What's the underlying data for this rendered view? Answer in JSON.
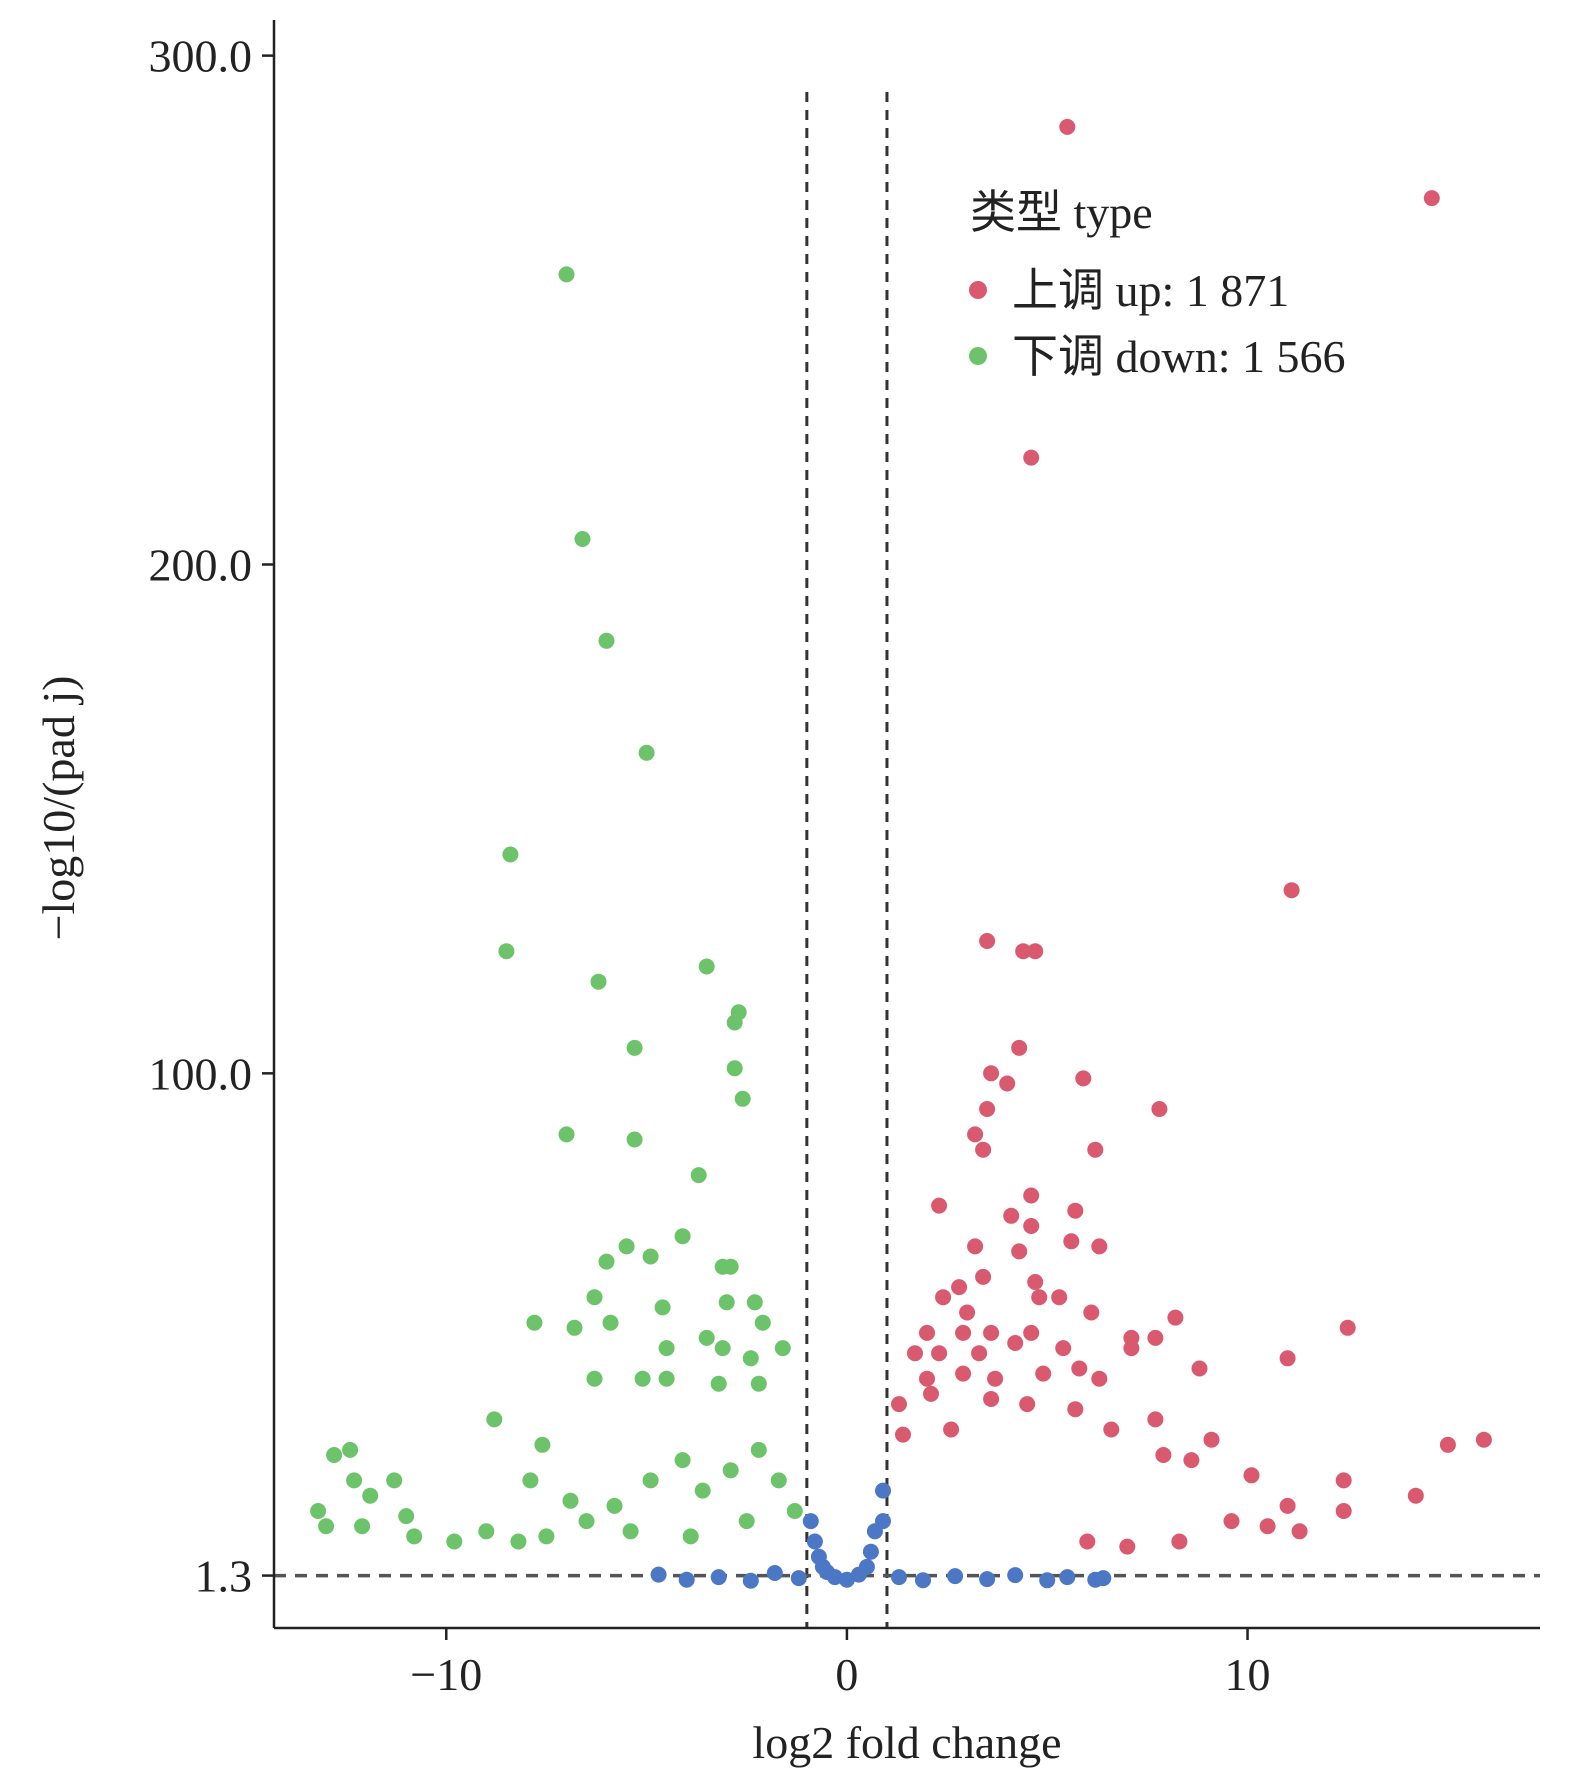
{
  "chart_data": {
    "type": "scatter",
    "title": "",
    "xlabel": "log2 fold change",
    "ylabel": "−log10/(pad j)",
    "xlim": [
      -14.3,
      17.3
    ],
    "ylim": [
      -9,
      307
    ],
    "x_ticks": [
      {
        "value": -10,
        "label": "−10"
      },
      {
        "value": 0,
        "label": "0"
      },
      {
        "value": 10,
        "label": "10"
      }
    ],
    "y_ticks": [
      {
        "value": 1.3,
        "label": "1.3"
      },
      {
        "value": 100,
        "label": "100.0"
      },
      {
        "value": 200,
        "label": "200.0"
      },
      {
        "value": 300,
        "label": "300.0"
      }
    ],
    "thresholds": {
      "x": [
        -1,
        1
      ],
      "y": 1.3
    },
    "legend": {
      "title": "类型 type",
      "position": "top-right"
    },
    "series": [
      {
        "name": "上调 up: 1 871",
        "color": "#d9596f",
        "points": [
          [
            5.5,
            286
          ],
          [
            14.6,
            272
          ],
          [
            4.6,
            221
          ],
          [
            11.1,
            136
          ],
          [
            3.5,
            126
          ],
          [
            4.4,
            124
          ],
          [
            4.7,
            124
          ],
          [
            4.3,
            105
          ],
          [
            3.6,
            100
          ],
          [
            4.0,
            98
          ],
          [
            5.9,
            99
          ],
          [
            3.5,
            93
          ],
          [
            7.8,
            93
          ],
          [
            3.2,
            88
          ],
          [
            3.4,
            85
          ],
          [
            6.2,
            85
          ],
          [
            4.6,
            76
          ],
          [
            2.3,
            74
          ],
          [
            5.7,
            73
          ],
          [
            4.1,
            72
          ],
          [
            4.6,
            70
          ],
          [
            3.2,
            66
          ],
          [
            4.3,
            65
          ],
          [
            6.3,
            66
          ],
          [
            5.6,
            67
          ],
          [
            3.4,
            60
          ],
          [
            2.8,
            58
          ],
          [
            4.7,
            59
          ],
          [
            2.4,
            56
          ],
          [
            4.8,
            56
          ],
          [
            5.3,
            56
          ],
          [
            3.0,
            53
          ],
          [
            6.1,
            53
          ],
          [
            8.2,
            52
          ],
          [
            2.0,
            49
          ],
          [
            2.9,
            49
          ],
          [
            3.6,
            49
          ],
          [
            4.6,
            49
          ],
          [
            7.1,
            48
          ],
          [
            7.7,
            48
          ],
          [
            12.5,
            50
          ],
          [
            1.7,
            45
          ],
          [
            2.3,
            45
          ],
          [
            3.3,
            45
          ],
          [
            4.2,
            47
          ],
          [
            5.4,
            46
          ],
          [
            7.1,
            46
          ],
          [
            11.0,
            44
          ],
          [
            8.8,
            42
          ],
          [
            6.3,
            40
          ],
          [
            2.0,
            40
          ],
          [
            2.9,
            41
          ],
          [
            3.7,
            40
          ],
          [
            4.9,
            41
          ],
          [
            5.8,
            42
          ],
          [
            1.3,
            35
          ],
          [
            2.1,
            37
          ],
          [
            3.6,
            36
          ],
          [
            4.5,
            35
          ],
          [
            5.7,
            34
          ],
          [
            9.1,
            28
          ],
          [
            7.7,
            32
          ],
          [
            6.6,
            30
          ],
          [
            15.9,
            28
          ],
          [
            15.0,
            27
          ],
          [
            12.4,
            20
          ],
          [
            12.4,
            14
          ],
          [
            14.2,
            17
          ],
          [
            7.9,
            25
          ],
          [
            8.6,
            24
          ],
          [
            10.1,
            21
          ],
          [
            11.0,
            15
          ],
          [
            11.3,
            10
          ],
          [
            9.6,
            12
          ],
          [
            10.5,
            11
          ],
          [
            8.3,
            8
          ],
          [
            7.0,
            7
          ],
          [
            6.0,
            8
          ],
          [
            1.4,
            29
          ],
          [
            2.6,
            30
          ]
        ]
      },
      {
        "name": "下调 down: 1 566",
        "color": "#6cc36a",
        "points": [
          [
            -7.0,
            257
          ],
          [
            -6.6,
            205
          ],
          [
            -6.0,
            185
          ],
          [
            -5.0,
            163
          ],
          [
            -8.4,
            143
          ],
          [
            -8.5,
            124
          ],
          [
            -3.5,
            121
          ],
          [
            -6.2,
            118
          ],
          [
            -2.7,
            112
          ],
          [
            -2.8,
            110
          ],
          [
            -5.3,
            105
          ],
          [
            -2.8,
            101
          ],
          [
            -2.6,
            95
          ],
          [
            -7.0,
            88
          ],
          [
            -5.3,
            87
          ],
          [
            -3.7,
            80
          ],
          [
            -4.1,
            68
          ],
          [
            -5.5,
            66
          ],
          [
            -4.9,
            64
          ],
          [
            -6.0,
            63
          ],
          [
            -2.9,
            62
          ],
          [
            -3.1,
            62
          ],
          [
            -6.3,
            56
          ],
          [
            -2.3,
            55
          ],
          [
            -4.6,
            54
          ],
          [
            -3.0,
            55
          ],
          [
            -7.8,
            51
          ],
          [
            -6.8,
            50
          ],
          [
            -5.9,
            51
          ],
          [
            -2.1,
            51
          ],
          [
            -4.5,
            46
          ],
          [
            -3.5,
            48
          ],
          [
            -3.1,
            46
          ],
          [
            -1.6,
            46
          ],
          [
            -2.4,
            44
          ],
          [
            -6.3,
            40
          ],
          [
            -5.1,
            40
          ],
          [
            -4.5,
            40
          ],
          [
            -3.2,
            39
          ],
          [
            -2.2,
            39
          ],
          [
            -8.8,
            32
          ],
          [
            -7.6,
            27
          ],
          [
            -12.4,
            26
          ],
          [
            -11.3,
            20
          ],
          [
            -12.8,
            25
          ],
          [
            -12.3,
            20
          ],
          [
            -11.9,
            17
          ],
          [
            -13.2,
            14
          ],
          [
            -13.0,
            11
          ],
          [
            -12.1,
            11
          ],
          [
            -11.0,
            13
          ],
          [
            -10.8,
            9
          ],
          [
            -9.8,
            8
          ],
          [
            -9.0,
            10
          ],
          [
            -8.2,
            8
          ],
          [
            -7.5,
            9
          ],
          [
            -6.5,
            12
          ],
          [
            -5.8,
            15
          ],
          [
            -4.9,
            20
          ],
          [
            -4.1,
            24
          ],
          [
            -3.6,
            18
          ],
          [
            -2.9,
            22
          ],
          [
            -2.2,
            26
          ],
          [
            -1.7,
            20
          ],
          [
            -1.3,
            14
          ],
          [
            -7.9,
            20
          ],
          [
            -6.9,
            16
          ],
          [
            -5.4,
            10
          ],
          [
            -3.9,
            9
          ],
          [
            -2.5,
            12
          ]
        ]
      },
      {
        "name": "",
        "color": "#4b77c4",
        "points": [
          [
            -4.7,
            1.5
          ],
          [
            -4.0,
            0.5
          ],
          [
            -3.2,
            1.0
          ],
          [
            -2.4,
            0.3
          ],
          [
            -1.8,
            1.8
          ],
          [
            -1.2,
            0.8
          ],
          [
            -0.9,
            12
          ],
          [
            -0.8,
            8
          ],
          [
            -0.7,
            5
          ],
          [
            -0.6,
            3
          ],
          [
            -0.5,
            2
          ],
          [
            -0.3,
            1
          ],
          [
            0.0,
            0.5
          ],
          [
            0.3,
            1.5
          ],
          [
            0.5,
            3
          ],
          [
            0.6,
            6
          ],
          [
            0.7,
            10
          ],
          [
            0.9,
            18
          ],
          [
            0.9,
            12
          ],
          [
            1.3,
            1.0
          ],
          [
            1.9,
            0.4
          ],
          [
            2.7,
            1.2
          ],
          [
            3.5,
            0.6
          ],
          [
            4.2,
            1.4
          ],
          [
            5.0,
            0.4
          ],
          [
            5.5,
            1.0
          ],
          [
            6.2,
            0.5
          ],
          [
            6.4,
            0.8
          ]
        ]
      }
    ]
  },
  "legend_items": [
    {
      "label": "上调 up: 1 871",
      "color": "#d9596f"
    },
    {
      "label": "下调 down: 1 566",
      "color": "#6cc36a"
    }
  ]
}
